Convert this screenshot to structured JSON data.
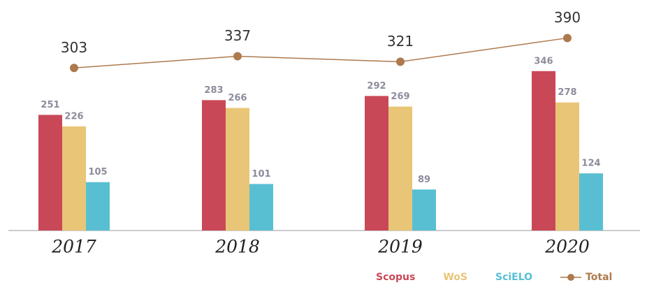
{
  "chart_data": {
    "type": "bar",
    "categories": [
      "2017",
      "2018",
      "2019",
      "2020"
    ],
    "series": [
      {
        "name": "Scopus",
        "color": "#c94857",
        "values": [
          251,
          283,
          292,
          346
        ]
      },
      {
        "name": "WoS",
        "color": "#e8c577",
        "values": [
          226,
          266,
          269,
          278
        ]
      },
      {
        "name": "SciELO",
        "color": "#58bfd3",
        "values": [
          105,
          101,
          89,
          124
        ]
      },
      {
        "name": "Total",
        "color": "#ad7a4e",
        "values": [
          303,
          337,
          321,
          390
        ],
        "axis": "y2",
        "type": "line"
      }
    ],
    "ylim": [
      0,
      470
    ],
    "y2lim": [
      -170,
      460
    ],
    "legend": "bottom-right"
  }
}
